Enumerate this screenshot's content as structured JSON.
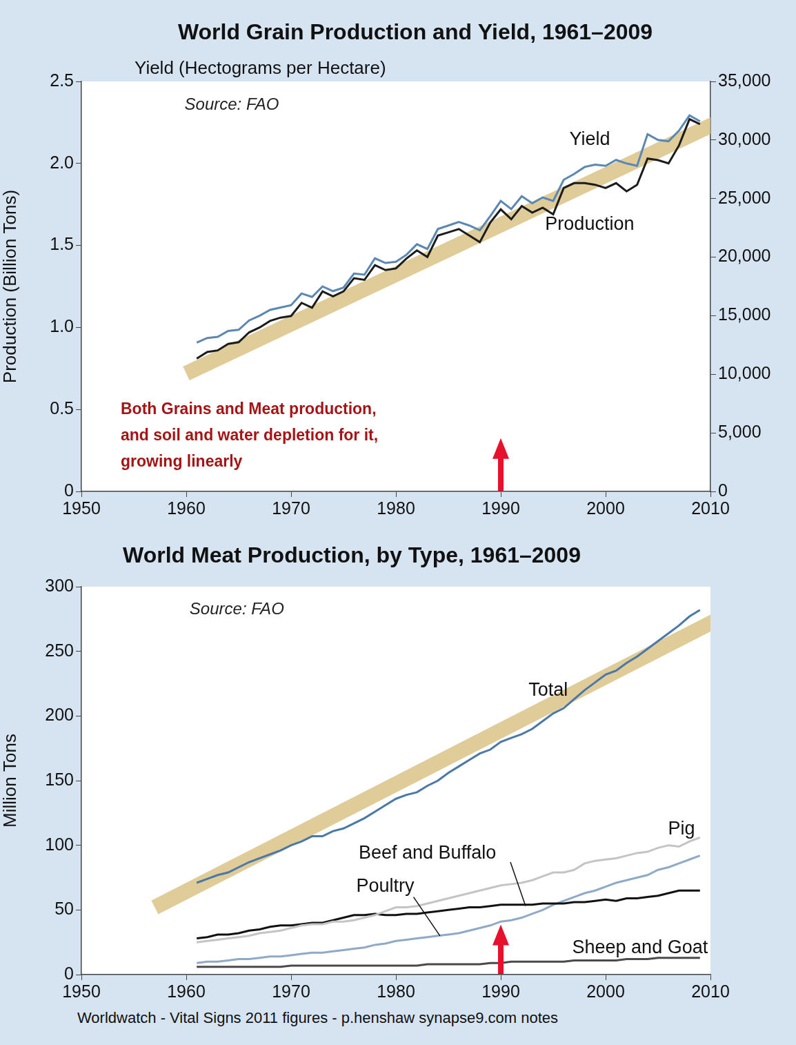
{
  "chart_data": [
    {
      "type": "line",
      "title": "World Grain Production and Yield, 1961–2009",
      "subtitle": "Yield (Hectograms per Hectare)",
      "source": "Source: FAO",
      "annotations": [
        "Both Grains and Meat production,",
        "and soil and water depletion for it,",
        "growing linearly"
      ],
      "arrow_x": 1990,
      "y_label": "Production (Billion Tons)",
      "x": [
        1961,
        1962,
        1963,
        1964,
        1965,
        1966,
        1967,
        1968,
        1969,
        1970,
        1971,
        1972,
        1973,
        1974,
        1975,
        1976,
        1977,
        1978,
        1979,
        1980,
        1981,
        1982,
        1983,
        1984,
        1985,
        1986,
        1987,
        1988,
        1989,
        1990,
        1991,
        1992,
        1993,
        1994,
        1995,
        1996,
        1997,
        1998,
        1999,
        2000,
        2001,
        2002,
        2003,
        2004,
        2005,
        2006,
        2007,
        2008,
        2009
      ],
      "xlim": [
        1950,
        2010
      ],
      "xticks": [
        1950,
        1960,
        1970,
        1980,
        1990,
        2000,
        2010
      ],
      "ylim": [
        0,
        2.5
      ],
      "yticks": [
        0,
        0.5,
        {
          "value": 1,
          "label": "1.0"
        },
        1.5,
        {
          "value": 2,
          "label": "2.0"
        },
        2.5
      ],
      "y2lim": [
        0,
        35000
      ],
      "y2ticks": [
        0,
        {
          "value": 5000,
          "label": "5,000"
        },
        {
          "value": 10000,
          "label": "10,000"
        },
        {
          "value": 15000,
          "label": "15,000"
        },
        {
          "value": 20000,
          "label": "20,000"
        },
        {
          "value": 25000,
          "label": "25,000"
        },
        {
          "value": 30000,
          "label": "30,000"
        },
        {
          "value": 35000,
          "label": "35,000"
        }
      ],
      "grid": false,
      "series": [
        {
          "name": "Yield",
          "color": "#5b88b3",
          "axis": "y2",
          "values": [
            12700,
            13100,
            13200,
            13700,
            13800,
            14600,
            15000,
            15500,
            15700,
            15900,
            16900,
            16600,
            17500,
            17100,
            17400,
            18600,
            18500,
            19900,
            19500,
            19600,
            20200,
            21100,
            20700,
            22400,
            22700,
            23000,
            22700,
            22300,
            23500,
            24800,
            24100,
            25200,
            24600,
            25100,
            24800,
            26600,
            27100,
            27700,
            27900,
            27800,
            28300,
            28000,
            27800,
            30500,
            30000,
            29900,
            30800,
            32100,
            31600
          ]
        },
        {
          "name": "Production",
          "color": "#1c1c1c",
          "values": [
            0.81,
            0.85,
            0.86,
            0.9,
            0.91,
            0.97,
            1.0,
            1.04,
            1.06,
            1.07,
            1.15,
            1.12,
            1.22,
            1.19,
            1.22,
            1.3,
            1.29,
            1.38,
            1.35,
            1.36,
            1.42,
            1.47,
            1.43,
            1.56,
            1.58,
            1.6,
            1.56,
            1.52,
            1.64,
            1.72,
            1.66,
            1.74,
            1.7,
            1.73,
            1.69,
            1.85,
            1.88,
            1.88,
            1.87,
            1.85,
            1.88,
            1.83,
            1.87,
            2.03,
            2.02,
            2.0,
            2.11,
            2.27,
            2.24
          ]
        }
      ],
      "trend": {
        "x": [
          1960,
          2011
        ],
        "values": [
          0.72,
          2.26
        ],
        "color": "#d8bf80"
      }
    },
    {
      "type": "line",
      "title": "World Meat Production, by Type, 1961–2009",
      "source": "Source: FAO",
      "arrow_x": 1990,
      "y_label": "Million Tons",
      "x": [
        1961,
        1962,
        1963,
        1964,
        1965,
        1966,
        1967,
        1968,
        1969,
        1970,
        1971,
        1972,
        1973,
        1974,
        1975,
        1976,
        1977,
        1978,
        1979,
        1980,
        1981,
        1982,
        1983,
        1984,
        1985,
        1986,
        1987,
        1988,
        1989,
        1990,
        1991,
        1992,
        1993,
        1994,
        1995,
        1996,
        1997,
        1998,
        1999,
        2000,
        2001,
        2002,
        2003,
        2004,
        2005,
        2006,
        2007,
        2008,
        2009
      ],
      "xlim": [
        1950,
        2010
      ],
      "xticks": [
        1950,
        1960,
        1970,
        1980,
        1990,
        2000,
        2010
      ],
      "ylim": [
        0,
        300
      ],
      "yticks": [
        0,
        50,
        100,
        150,
        200,
        250,
        300
      ],
      "grid": false,
      "series": [
        {
          "name": "Total",
          "color": "#4a78a8",
          "values": [
            71,
            74,
            77,
            79,
            83,
            87,
            90,
            93,
            96,
            100,
            103,
            107,
            107,
            111,
            113,
            117,
            121,
            126,
            131,
            136,
            139,
            141,
            146,
            150,
            156,
            161,
            166,
            171,
            174,
            180,
            183,
            186,
            190,
            196,
            202,
            206,
            213,
            220,
            226,
            232,
            235,
            241,
            246,
            252,
            258,
            264,
            270,
            277,
            282
          ]
        },
        {
          "name": "Pig",
          "color": "#c4c4c4",
          "values": [
            25,
            26,
            27,
            28,
            29,
            30,
            32,
            33,
            34,
            36,
            38,
            39,
            39,
            41,
            41,
            42,
            44,
            46,
            49,
            52,
            52,
            53,
            55,
            57,
            59,
            61,
            63,
            65,
            67,
            69,
            70,
            71,
            73,
            76,
            79,
            79,
            81,
            86,
            88,
            89,
            90,
            92,
            94,
            95,
            98,
            100,
            99,
            103,
            106
          ]
        },
        {
          "name": "Beef and Buffalo",
          "color": "#111111",
          "values": [
            28,
            29,
            31,
            31,
            32,
            34,
            35,
            37,
            38,
            38,
            39,
            40,
            40,
            42,
            44,
            46,
            46,
            47,
            46,
            46,
            47,
            47,
            48,
            49,
            50,
            51,
            52,
            52,
            53,
            54,
            54,
            54,
            54,
            55,
            55,
            55,
            56,
            56,
            57,
            58,
            57,
            59,
            59,
            60,
            61,
            63,
            65,
            65,
            65
          ]
        },
        {
          "name": "Poultry",
          "color": "#8eaac8",
          "values": [
            9,
            10,
            10,
            11,
            12,
            12,
            13,
            14,
            14,
            15,
            16,
            17,
            17,
            18,
            19,
            20,
            21,
            23,
            24,
            26,
            27,
            28,
            29,
            30,
            31,
            32,
            34,
            36,
            38,
            41,
            42,
            44,
            47,
            50,
            54,
            57,
            60,
            63,
            65,
            68,
            71,
            73,
            75,
            77,
            81,
            83,
            86,
            89,
            92
          ]
        },
        {
          "name": "Sheep and Goat",
          "color": "#4a4a4a",
          "values": [
            6,
            6,
            6,
            6,
            6,
            6,
            6,
            6,
            6,
            7,
            7,
            7,
            7,
            7,
            7,
            7,
            7,
            7,
            7,
            7,
            7,
            7,
            8,
            8,
            8,
            8,
            8,
            8,
            9,
            9,
            10,
            10,
            10,
            10,
            10,
            10,
            11,
            11,
            11,
            11,
            11,
            12,
            12,
            12,
            13,
            13,
            13,
            13,
            13
          ]
        }
      ],
      "trend": {
        "x": [
          1957,
          2011
        ],
        "values": [
          52,
          276
        ],
        "color": "#d8bf80"
      }
    }
  ],
  "footer": "Worldwatch - Vital Signs 2011   figures   -   p.henshaw synapse9.com notes"
}
